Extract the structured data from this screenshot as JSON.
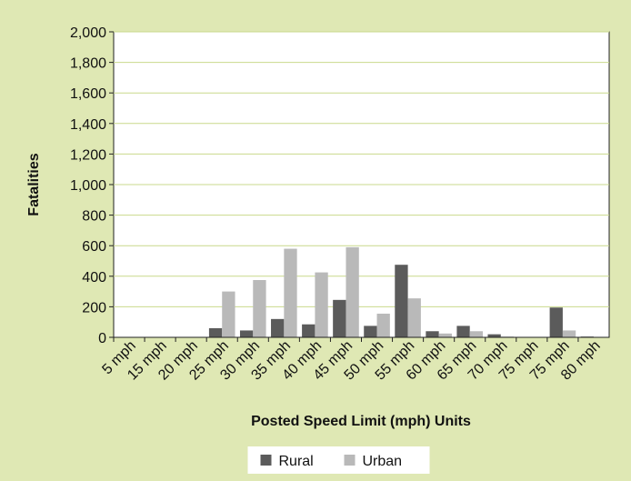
{
  "chart_data": {
    "type": "bar",
    "x_label": "Posted Speed Limit (mph) Units",
    "y_label": "Fatalities",
    "categories": [
      "5 mph",
      "15 mph",
      "20 mph",
      "25 mph",
      "30 mph",
      "35 mph",
      "40 mph",
      "45 mph",
      "50 mph",
      "55 mph",
      "60 mph",
      "65 mph",
      "70 mph",
      "75 mph",
      "75 mph",
      "80 mph"
    ],
    "series": [
      {
        "name": "Rural",
        "color": "#5b5b5b",
        "values": [
          0,
          0,
          3,
          60,
          45,
          120,
          85,
          245,
          75,
          475,
          40,
          75,
          20,
          0,
          195,
          5
        ]
      },
      {
        "name": "Urban",
        "color": "#b9b9b9",
        "values": [
          0,
          0,
          0,
          300,
          375,
          580,
          425,
          590,
          155,
          255,
          25,
          40,
          5,
          0,
          45,
          0
        ]
      }
    ],
    "ylim": [
      0,
      2000
    ],
    "yticks": [
      0,
      200,
      400,
      600,
      800,
      {
        "value": 1000,
        "label": "1,000"
      },
      {
        "value": 1200,
        "label": "1,200"
      },
      {
        "value": 1400,
        "label": "1,400"
      },
      {
        "value": 1600,
        "label": "1,600"
      },
      {
        "value": 1800,
        "label": "1,800"
      },
      {
        "value": 2000,
        "label": "2,000"
      }
    ],
    "grid": true,
    "grid_color": "#c9d98c",
    "legend": "bottom"
  }
}
